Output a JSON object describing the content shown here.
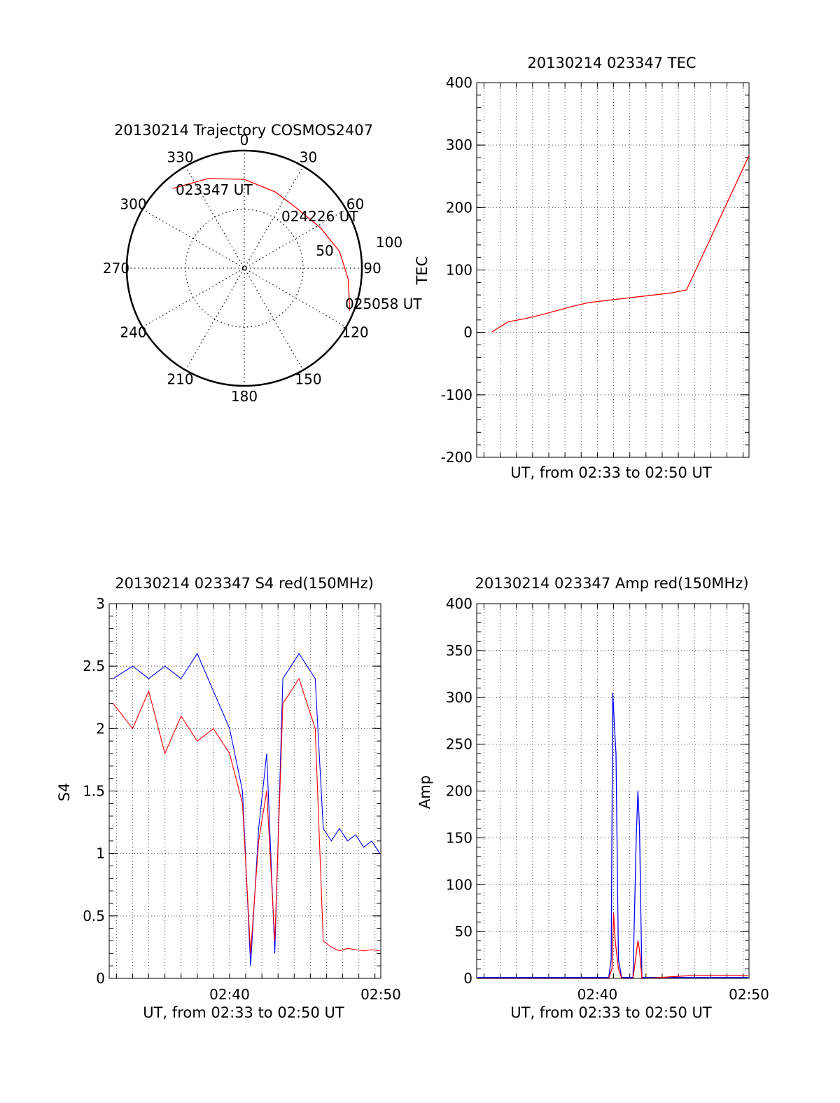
{
  "chart_data": [
    {
      "type": "polar",
      "title": "20130214 Trajectory COSMOS2407",
      "angle_labels": [
        "0",
        "30",
        "60",
        "90",
        "120",
        "150",
        "180",
        "210",
        "240",
        "270",
        "300",
        "330"
      ],
      "radius_labels": [
        "50",
        "100"
      ],
      "grid": true,
      "trajectory": {
        "color": "#ff0000",
        "points": [
          {
            "azimuth": 318,
            "elevation": 8
          },
          {
            "azimuth": 338,
            "elevation": 16
          },
          {
            "azimuth": 0,
            "elevation": 22
          },
          {
            "azimuth": 22,
            "elevation": 27
          },
          {
            "azimuth": 42,
            "elevation": 29
          },
          {
            "azimuth": 62,
            "elevation": 24
          },
          {
            "azimuth": 80,
            "elevation": 16
          },
          {
            "azimuth": 96,
            "elevation": 10
          },
          {
            "azimuth": 112,
            "elevation": 3
          }
        ]
      },
      "annotations": [
        "023347 UT",
        "024226 UT",
        "025058 UT"
      ]
    },
    {
      "type": "line",
      "title": "20130214 023347 TEC",
      "xlabel": "UT, from 02:33 to 02:50 UT",
      "ylabel": "TEC",
      "xlim": [
        2.55,
        19.36
      ],
      "ylim": [
        -200,
        400
      ],
      "yticks": [
        "-200",
        "-100",
        "0",
        "100",
        "200",
        "300",
        "400"
      ],
      "grid": true,
      "series": [
        {
          "color": "#ff0000",
          "x": [
            3.5,
            4.5,
            5.5,
            6.5,
            7.5,
            8.5,
            9.5,
            10.5,
            11.5,
            12.5,
            13.5,
            14.5,
            15.5,
            19.36
          ],
          "y": [
            1,
            17,
            22,
            28,
            35,
            42,
            48,
            51,
            54,
            57,
            60,
            63,
            68,
            283
          ]
        }
      ]
    },
    {
      "type": "line",
      "title": "20130214 023347 S4 red(150MHz)",
      "xlabel": "UT, from 02:33 to 02:50 UT",
      "ylabel": "S4",
      "xlim": [
        2.55,
        19.36
      ],
      "ylim": [
        0,
        3
      ],
      "yticks": [
        "0",
        "0.5",
        "1",
        "1.5",
        "2",
        "2.5",
        "3"
      ],
      "xticks": [
        {
          "x": 10,
          "label": "02:40"
        },
        {
          "x": 19.36,
          "label": "02:50"
        }
      ],
      "grid": true,
      "series": [
        {
          "color": "#0000ff",
          "x": [
            2.8,
            4.0,
            5.0,
            6.0,
            7.0,
            8.0,
            9.0,
            10.0,
            10.8,
            11.3,
            11.8,
            12.3,
            12.8,
            13.3,
            13.8,
            14.3,
            14.8,
            15.3,
            15.8,
            16.3,
            16.8,
            17.3,
            17.8,
            18.3,
            18.8,
            19.3
          ],
          "y": [
            2.4,
            2.5,
            2.4,
            2.5,
            2.4,
            2.6,
            2.3,
            2.0,
            1.5,
            0.1,
            1.2,
            1.8,
            0.2,
            2.4,
            2.5,
            2.6,
            2.5,
            2.4,
            1.2,
            1.1,
            1.2,
            1.1,
            1.15,
            1.05,
            1.1,
            1.0
          ]
        },
        {
          "color": "#ff0000",
          "x": [
            2.8,
            4.0,
            5.0,
            6.0,
            7.0,
            8.0,
            9.0,
            10.0,
            10.8,
            11.3,
            11.8,
            12.3,
            12.8,
            13.3,
            13.8,
            14.3,
            14.8,
            15.3,
            15.8,
            16.3,
            16.8,
            17.3,
            17.8,
            18.3,
            18.8,
            19.3
          ],
          "y": [
            2.2,
            2.0,
            2.3,
            1.8,
            2.1,
            1.9,
            2.0,
            1.8,
            1.4,
            0.2,
            1.1,
            1.5,
            0.3,
            2.2,
            2.3,
            2.4,
            2.2,
            2.0,
            0.3,
            0.25,
            0.22,
            0.24,
            0.23,
            0.22,
            0.23,
            0.22
          ]
        }
      ]
    },
    {
      "type": "line",
      "title": "20130214 023347 Amp red(150MHz)",
      "xlabel": "UT, from 02:33 to 02:50 UT",
      "ylabel": "Amp",
      "xlim": [
        2.55,
        19.36
      ],
      "ylim": [
        0,
        400
      ],
      "yticks": [
        "0",
        "50",
        "100",
        "150",
        "200",
        "250",
        "300",
        "350",
        "400"
      ],
      "xticks": [
        {
          "x": 10,
          "label": "02:40"
        },
        {
          "x": 19.36,
          "label": "02:50"
        }
      ],
      "grid": true,
      "series": [
        {
          "color": "#0000ff",
          "x": [
            2.6,
            10.7,
            10.85,
            10.95,
            11.05,
            11.15,
            11.3,
            11.5,
            12.2,
            12.4,
            12.5,
            12.6,
            12.75,
            13.0,
            19.3
          ],
          "y": [
            1,
            1,
            20,
            305,
            270,
            240,
            20,
            1,
            1,
            150,
            200,
            160,
            1,
            1,
            1
          ]
        },
        {
          "color": "#ff0000",
          "x": [
            2.6,
            10.7,
            10.9,
            11.0,
            11.1,
            11.3,
            11.5,
            12.2,
            12.5,
            12.6,
            12.75,
            13.0,
            15.8,
            19.3
          ],
          "y": [
            0,
            0,
            10,
            70,
            40,
            10,
            0,
            0,
            40,
            30,
            0,
            0,
            3,
            3
          ]
        }
      ]
    }
  ]
}
